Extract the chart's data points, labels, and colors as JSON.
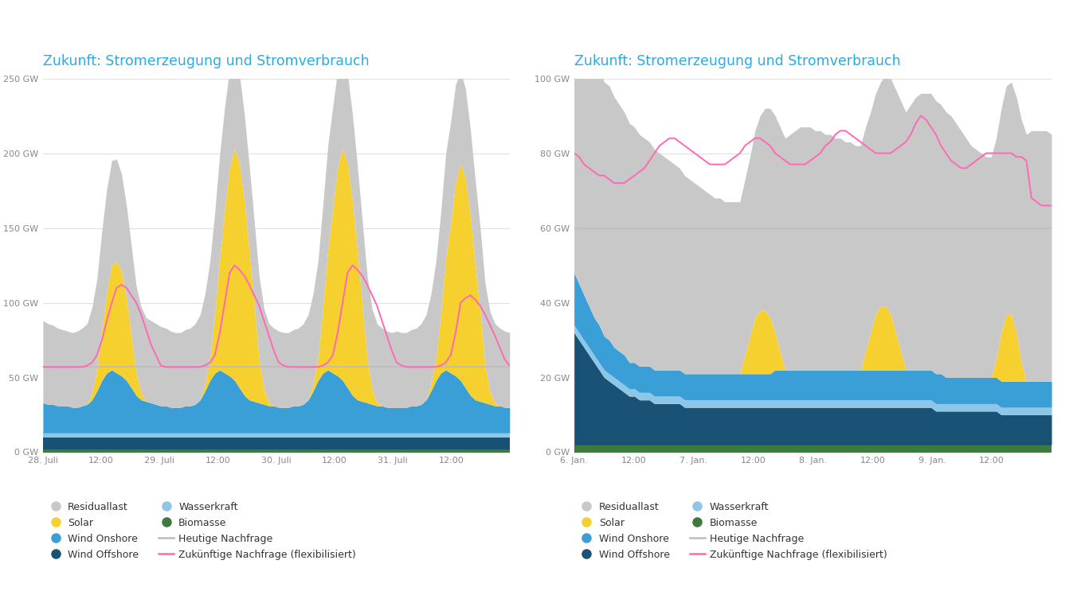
{
  "title": "Zukunft: Stromerzeugung und Stromverbrauch",
  "title_color": "#29abe2",
  "background_color": "#ffffff",
  "chart1": {
    "xlabel_ticks": [
      "28. Juli",
      "12:00",
      "29. Juli",
      "12:00",
      "30. Juli",
      "12:00",
      "31. Juli",
      "12:00"
    ],
    "ylim": [
      0,
      250
    ],
    "yticks": [
      0,
      50,
      100,
      150,
      200,
      250
    ],
    "ytick_labels": [
      "0 GW",
      "50 GW",
      "100 GW",
      "150 GW",
      "200 GW",
      "250 GW"
    ],
    "n_points": 96,
    "residuallast": [
      55,
      54,
      53,
      52,
      51,
      50,
      50,
      51,
      52,
      54,
      57,
      60,
      65,
      68,
      70,
      68,
      65,
      62,
      60,
      58,
      57,
      56,
      55,
      54,
      53,
      52,
      51,
      50,
      50,
      51,
      52,
      54,
      57,
      60,
      65,
      68,
      70,
      68,
      65,
      62,
      60,
      58,
      57,
      56,
      55,
      54,
      53,
      52,
      51,
      50,
      50,
      51,
      52,
      54,
      57,
      60,
      65,
      68,
      70,
      68,
      65,
      62,
      60,
      58,
      57,
      56,
      55,
      54,
      53,
      52,
      51,
      50,
      51,
      50,
      50,
      51,
      52,
      54,
      57,
      60,
      65,
      68,
      70,
      68,
      65,
      62,
      60,
      58,
      57,
      56,
      55,
      54,
      53,
      52,
      51,
      50
    ],
    "wind_onshore": [
      20,
      19,
      19,
      18,
      18,
      18,
      17,
      17,
      18,
      19,
      22,
      28,
      35,
      40,
      42,
      40,
      38,
      35,
      30,
      25,
      22,
      21,
      20,
      19,
      18,
      18,
      17,
      17,
      17,
      18,
      18,
      19,
      22,
      28,
      35,
      40,
      42,
      40,
      38,
      35,
      30,
      25,
      22,
      21,
      20,
      19,
      18,
      18,
      17,
      17,
      17,
      18,
      18,
      19,
      22,
      28,
      35,
      40,
      42,
      40,
      38,
      35,
      30,
      25,
      22,
      21,
      20,
      19,
      18,
      18,
      17,
      17,
      17,
      17,
      17,
      18,
      18,
      19,
      22,
      28,
      35,
      40,
      42,
      40,
      38,
      35,
      30,
      25,
      22,
      21,
      20,
      19,
      18,
      18,
      17,
      17
    ],
    "wasserkraft": [
      3,
      3,
      3,
      3,
      3,
      3,
      3,
      3,
      3,
      3,
      3,
      3,
      3,
      3,
      3,
      3,
      3,
      3,
      3,
      3,
      3,
      3,
      3,
      3,
      3,
      3,
      3,
      3,
      3,
      3,
      3,
      3,
      3,
      3,
      3,
      3,
      3,
      3,
      3,
      3,
      3,
      3,
      3,
      3,
      3,
      3,
      3,
      3,
      3,
      3,
      3,
      3,
      3,
      3,
      3,
      3,
      3,
      3,
      3,
      3,
      3,
      3,
      3,
      3,
      3,
      3,
      3,
      3,
      3,
      3,
      3,
      3,
      3,
      3,
      3,
      3,
      3,
      3,
      3,
      3,
      3,
      3,
      3,
      3,
      3,
      3,
      3,
      3,
      3,
      3,
      3,
      3,
      3,
      3,
      3,
      3
    ],
    "wind_offshore": [
      8,
      8,
      8,
      8,
      8,
      8,
      8,
      8,
      8,
      8,
      8,
      8,
      8,
      8,
      8,
      8,
      8,
      8,
      8,
      8,
      8,
      8,
      8,
      8,
      8,
      8,
      8,
      8,
      8,
      8,
      8,
      8,
      8,
      8,
      8,
      8,
      8,
      8,
      8,
      8,
      8,
      8,
      8,
      8,
      8,
      8,
      8,
      8,
      8,
      8,
      8,
      8,
      8,
      8,
      8,
      8,
      8,
      8,
      8,
      8,
      8,
      8,
      8,
      8,
      8,
      8,
      8,
      8,
      8,
      8,
      8,
      8,
      8,
      8,
      8,
      8,
      8,
      8,
      8,
      8,
      8,
      8,
      8,
      8,
      8,
      8,
      8,
      8,
      8,
      8,
      8,
      8,
      8,
      8,
      8,
      8
    ],
    "biomasse": [
      2,
      2,
      2,
      2,
      2,
      2,
      2,
      2,
      2,
      2,
      2,
      2,
      2,
      2,
      2,
      2,
      2,
      2,
      2,
      2,
      2,
      2,
      2,
      2,
      2,
      2,
      2,
      2,
      2,
      2,
      2,
      2,
      2,
      2,
      2,
      2,
      2,
      2,
      2,
      2,
      2,
      2,
      2,
      2,
      2,
      2,
      2,
      2,
      2,
      2,
      2,
      2,
      2,
      2,
      2,
      2,
      2,
      2,
      2,
      2,
      2,
      2,
      2,
      2,
      2,
      2,
      2,
      2,
      2,
      2,
      2,
      2,
      2,
      2,
      2,
      2,
      2,
      2,
      2,
      2,
      2,
      2,
      2,
      2,
      2,
      2,
      2,
      2,
      2,
      2,
      2,
      2,
      2,
      2,
      2,
      2
    ],
    "solar": [
      0,
      0,
      0,
      0,
      0,
      0,
      0,
      0,
      0,
      0,
      5,
      15,
      35,
      55,
      70,
      75,
      70,
      55,
      35,
      15,
      5,
      0,
      0,
      0,
      0,
      0,
      0,
      0,
      0,
      0,
      0,
      0,
      0,
      5,
      15,
      40,
      75,
      110,
      140,
      155,
      150,
      130,
      100,
      65,
      30,
      10,
      2,
      0,
      0,
      0,
      0,
      0,
      0,
      0,
      0,
      5,
      15,
      45,
      80,
      110,
      140,
      155,
      150,
      130,
      100,
      65,
      30,
      10,
      2,
      0,
      0,
      0,
      0,
      0,
      0,
      0,
      0,
      0,
      0,
      5,
      15,
      40,
      75,
      100,
      130,
      145,
      140,
      120,
      90,
      60,
      25,
      8,
      2,
      0,
      0,
      0
    ],
    "heutige_nachfrage": [
      57,
      57,
      57,
      57,
      57,
      57,
      57,
      57,
      57,
      57,
      57,
      57,
      57,
      57,
      57,
      57,
      57,
      57,
      57,
      57,
      57,
      57,
      57,
      57,
      57,
      57,
      57,
      57,
      57,
      57,
      57,
      57,
      57,
      57,
      57,
      57,
      57,
      57,
      57,
      57,
      57,
      57,
      57,
      57,
      57,
      57,
      57,
      57,
      57,
      57,
      57,
      57,
      57,
      57,
      57,
      57,
      57,
      57,
      57,
      57,
      57,
      57,
      57,
      57,
      57,
      57,
      57,
      57,
      57,
      57,
      57,
      57,
      57,
      57,
      57,
      57,
      57,
      57,
      57,
      57,
      57,
      57,
      57,
      57,
      57,
      57,
      57,
      57,
      57,
      57,
      57,
      57,
      57,
      57,
      57,
      57
    ],
    "zuk_nachfrage": [
      57,
      57,
      57,
      57,
      57,
      57,
      57,
      57,
      57,
      58,
      60,
      65,
      75,
      88,
      100,
      110,
      112,
      110,
      105,
      100,
      92,
      82,
      72,
      65,
      58,
      57,
      57,
      57,
      57,
      57,
      57,
      57,
      57,
      58,
      60,
      65,
      80,
      100,
      120,
      125,
      122,
      118,
      112,
      105,
      98,
      88,
      78,
      68,
      60,
      58,
      57,
      57,
      57,
      57,
      57,
      57,
      57,
      58,
      60,
      65,
      80,
      100,
      120,
      125,
      122,
      118,
      112,
      105,
      98,
      88,
      78,
      68,
      60,
      58,
      57,
      57,
      57,
      57,
      57,
      57,
      57,
      58,
      60,
      65,
      80,
      100,
      103,
      105,
      102,
      98,
      92,
      85,
      78,
      70,
      62,
      58
    ]
  },
  "chart2": {
    "xlabel_ticks": [
      "6. Jan.",
      "12:00",
      "7. Jan.",
      "12:00",
      "8. Jan.",
      "12:00",
      "9. Jan.",
      "12:00"
    ],
    "ylim": [
      0,
      100
    ],
    "yticks": [
      0,
      20,
      40,
      60,
      80,
      100
    ],
    "ytick_labels": [
      "0 GW",
      "20 GW",
      "40 GW",
      "60 GW",
      "80 GW",
      "100 GW"
    ],
    "n_points": 96,
    "residuallast": [
      78,
      76,
      74,
      72,
      70,
      69,
      68,
      68,
      67,
      66,
      65,
      64,
      63,
      62,
      61,
      60,
      59,
      58,
      57,
      56,
      55,
      54,
      53,
      52,
      51,
      50,
      49,
      48,
      47,
      47,
      46,
      46,
      46,
      46,
      47,
      48,
      50,
      52,
      54,
      56,
      58,
      60,
      62,
      63,
      64,
      65,
      65,
      65,
      64,
      64,
      63,
      63,
      62,
      62,
      61,
      61,
      60,
      60,
      60,
      59,
      59,
      60,
      62,
      63,
      65,
      67,
      69,
      71,
      73,
      74,
      74,
      74,
      73,
      72,
      71,
      70,
      68,
      66,
      64,
      62,
      61,
      60,
      59,
      59,
      59,
      60,
      61,
      62,
      63,
      65,
      66,
      67,
      67,
      67,
      67,
      66
    ],
    "wind_onshore": [
      14,
      13,
      12,
      11,
      10,
      10,
      9,
      9,
      8,
      8,
      8,
      7,
      7,
      7,
      7,
      7,
      7,
      7,
      7,
      7,
      7,
      7,
      7,
      7,
      7,
      7,
      7,
      7,
      7,
      7,
      7,
      7,
      7,
      7,
      7,
      7,
      7,
      7,
      7,
      7,
      8,
      8,
      8,
      8,
      8,
      8,
      8,
      8,
      8,
      8,
      8,
      8,
      8,
      8,
      8,
      8,
      8,
      8,
      8,
      8,
      8,
      8,
      8,
      8,
      8,
      8,
      8,
      8,
      8,
      8,
      8,
      8,
      8,
      8,
      7,
      7,
      7,
      7,
      7,
      7,
      7,
      7,
      7,
      7,
      7,
      7,
      7,
      7,
      7,
      7,
      7,
      7,
      7,
      7,
      7,
      7
    ],
    "wasserkraft": [
      2,
      2,
      2,
      2,
      2,
      2,
      2,
      2,
      2,
      2,
      2,
      2,
      2,
      2,
      2,
      2,
      2,
      2,
      2,
      2,
      2,
      2,
      2,
      2,
      2,
      2,
      2,
      2,
      2,
      2,
      2,
      2,
      2,
      2,
      2,
      2,
      2,
      2,
      2,
      2,
      2,
      2,
      2,
      2,
      2,
      2,
      2,
      2,
      2,
      2,
      2,
      2,
      2,
      2,
      2,
      2,
      2,
      2,
      2,
      2,
      2,
      2,
      2,
      2,
      2,
      2,
      2,
      2,
      2,
      2,
      2,
      2,
      2,
      2,
      2,
      2,
      2,
      2,
      2,
      2,
      2,
      2,
      2,
      2,
      2,
      2,
      2,
      2,
      2,
      2,
      2,
      2,
      2,
      2,
      2,
      2
    ],
    "wind_offshore": [
      30,
      28,
      26,
      24,
      22,
      20,
      18,
      17,
      16,
      15,
      14,
      13,
      13,
      12,
      12,
      12,
      11,
      11,
      11,
      11,
      11,
      11,
      10,
      10,
      10,
      10,
      10,
      10,
      10,
      10,
      10,
      10,
      10,
      10,
      10,
      10,
      10,
      10,
      10,
      10,
      10,
      10,
      10,
      10,
      10,
      10,
      10,
      10,
      10,
      10,
      10,
      10,
      10,
      10,
      10,
      10,
      10,
      10,
      10,
      10,
      10,
      10,
      10,
      10,
      10,
      10,
      10,
      10,
      10,
      10,
      10,
      10,
      9,
      9,
      9,
      9,
      9,
      9,
      9,
      9,
      9,
      9,
      9,
      9,
      9,
      8,
      8,
      8,
      8,
      8,
      8,
      8,
      8,
      8,
      8,
      8
    ],
    "biomasse": [
      2,
      2,
      2,
      2,
      2,
      2,
      2,
      2,
      2,
      2,
      2,
      2,
      2,
      2,
      2,
      2,
      2,
      2,
      2,
      2,
      2,
      2,
      2,
      2,
      2,
      2,
      2,
      2,
      2,
      2,
      2,
      2,
      2,
      2,
      2,
      2,
      2,
      2,
      2,
      2,
      2,
      2,
      2,
      2,
      2,
      2,
      2,
      2,
      2,
      2,
      2,
      2,
      2,
      2,
      2,
      2,
      2,
      2,
      2,
      2,
      2,
      2,
      2,
      2,
      2,
      2,
      2,
      2,
      2,
      2,
      2,
      2,
      2,
      2,
      2,
      2,
      2,
      2,
      2,
      2,
      2,
      2,
      2,
      2,
      2,
      2,
      2,
      2,
      2,
      2,
      2,
      2,
      2,
      2,
      2,
      2
    ],
    "solar": [
      0,
      0,
      0,
      0,
      0,
      0,
      0,
      0,
      0,
      0,
      0,
      0,
      0,
      0,
      0,
      0,
      0,
      0,
      0,
      0,
      0,
      0,
      0,
      0,
      0,
      0,
      0,
      0,
      0,
      0,
      0,
      0,
      0,
      0,
      5,
      10,
      15,
      17,
      17,
      15,
      10,
      5,
      0,
      0,
      0,
      0,
      0,
      0,
      0,
      0,
      0,
      0,
      0,
      0,
      0,
      0,
      0,
      0,
      5,
      10,
      15,
      17,
      17,
      15,
      10,
      5,
      0,
      0,
      0,
      0,
      0,
      0,
      0,
      0,
      0,
      0,
      0,
      0,
      0,
      0,
      0,
      0,
      0,
      0,
      5,
      13,
      18,
      18,
      13,
      5,
      0,
      0,
      0,
      0,
      0,
      0
    ],
    "heutige_nachfrage": [
      60,
      60,
      60,
      60,
      60,
      60,
      60,
      60,
      60,
      60,
      60,
      60,
      60,
      60,
      60,
      60,
      60,
      60,
      60,
      60,
      60,
      60,
      60,
      60,
      60,
      60,
      60,
      60,
      60,
      60,
      60,
      60,
      60,
      60,
      60,
      60,
      60,
      60,
      60,
      60,
      60,
      60,
      60,
      60,
      60,
      60,
      60,
      60,
      60,
      60,
      60,
      60,
      60,
      60,
      60,
      60,
      60,
      60,
      60,
      60,
      60,
      60,
      60,
      60,
      60,
      60,
      60,
      60,
      60,
      60,
      60,
      60,
      60,
      60,
      60,
      60,
      60,
      60,
      60,
      60,
      60,
      60,
      60,
      60,
      60,
      60,
      60,
      60,
      60,
      60,
      60,
      60,
      60,
      60,
      60,
      60
    ],
    "zuk_nachfrage": [
      80,
      79,
      77,
      76,
      75,
      74,
      74,
      73,
      72,
      72,
      72,
      73,
      74,
      75,
      76,
      78,
      80,
      82,
      83,
      84,
      84,
      83,
      82,
      81,
      80,
      79,
      78,
      77,
      77,
      77,
      77,
      78,
      79,
      80,
      82,
      83,
      84,
      84,
      83,
      82,
      80,
      79,
      78,
      77,
      77,
      77,
      77,
      78,
      79,
      80,
      82,
      83,
      85,
      86,
      86,
      85,
      84,
      83,
      82,
      81,
      80,
      80,
      80,
      80,
      81,
      82,
      83,
      85,
      88,
      90,
      89,
      87,
      85,
      82,
      80,
      78,
      77,
      76,
      76,
      77,
      78,
      79,
      80,
      80,
      80,
      80,
      80,
      80,
      79,
      79,
      78,
      68,
      67,
      66,
      66,
      66
    ]
  },
  "colors": {
    "residuallast": "#c8c8c8",
    "wind_onshore": "#3a9fd6",
    "wasserkraft": "#8ec6e8",
    "wind_offshore": "#1a5276",
    "biomasse": "#3d7a3d",
    "solar": "#f5d02e",
    "heutige_nachfrage": "#bbbbbb",
    "zuk_nachfrage": "#ff69b4"
  },
  "legend_items_left": [
    {
      "label": "Residuallast",
      "color": "#c8c8c8",
      "type": "circle"
    },
    {
      "label": "Solar",
      "color": "#f5d02e",
      "type": "circle"
    },
    {
      "label": "Wind Onshore",
      "color": "#3a9fd6",
      "type": "circle"
    },
    {
      "label": "Wind Offshore",
      "color": "#1a5276",
      "type": "circle"
    },
    {
      "label": "Wasserkraft",
      "color": "#8ec6e8",
      "type": "circle"
    },
    {
      "label": "Biomasse",
      "color": "#3d7a3d",
      "type": "circle"
    },
    {
      "label": "Heutige Nachfrage",
      "color": "#bbbbbb",
      "type": "line"
    },
    {
      "label": "Zukünftige Nachfrage (flexibilisiert)",
      "color": "#ff69b4",
      "type": "line"
    }
  ]
}
